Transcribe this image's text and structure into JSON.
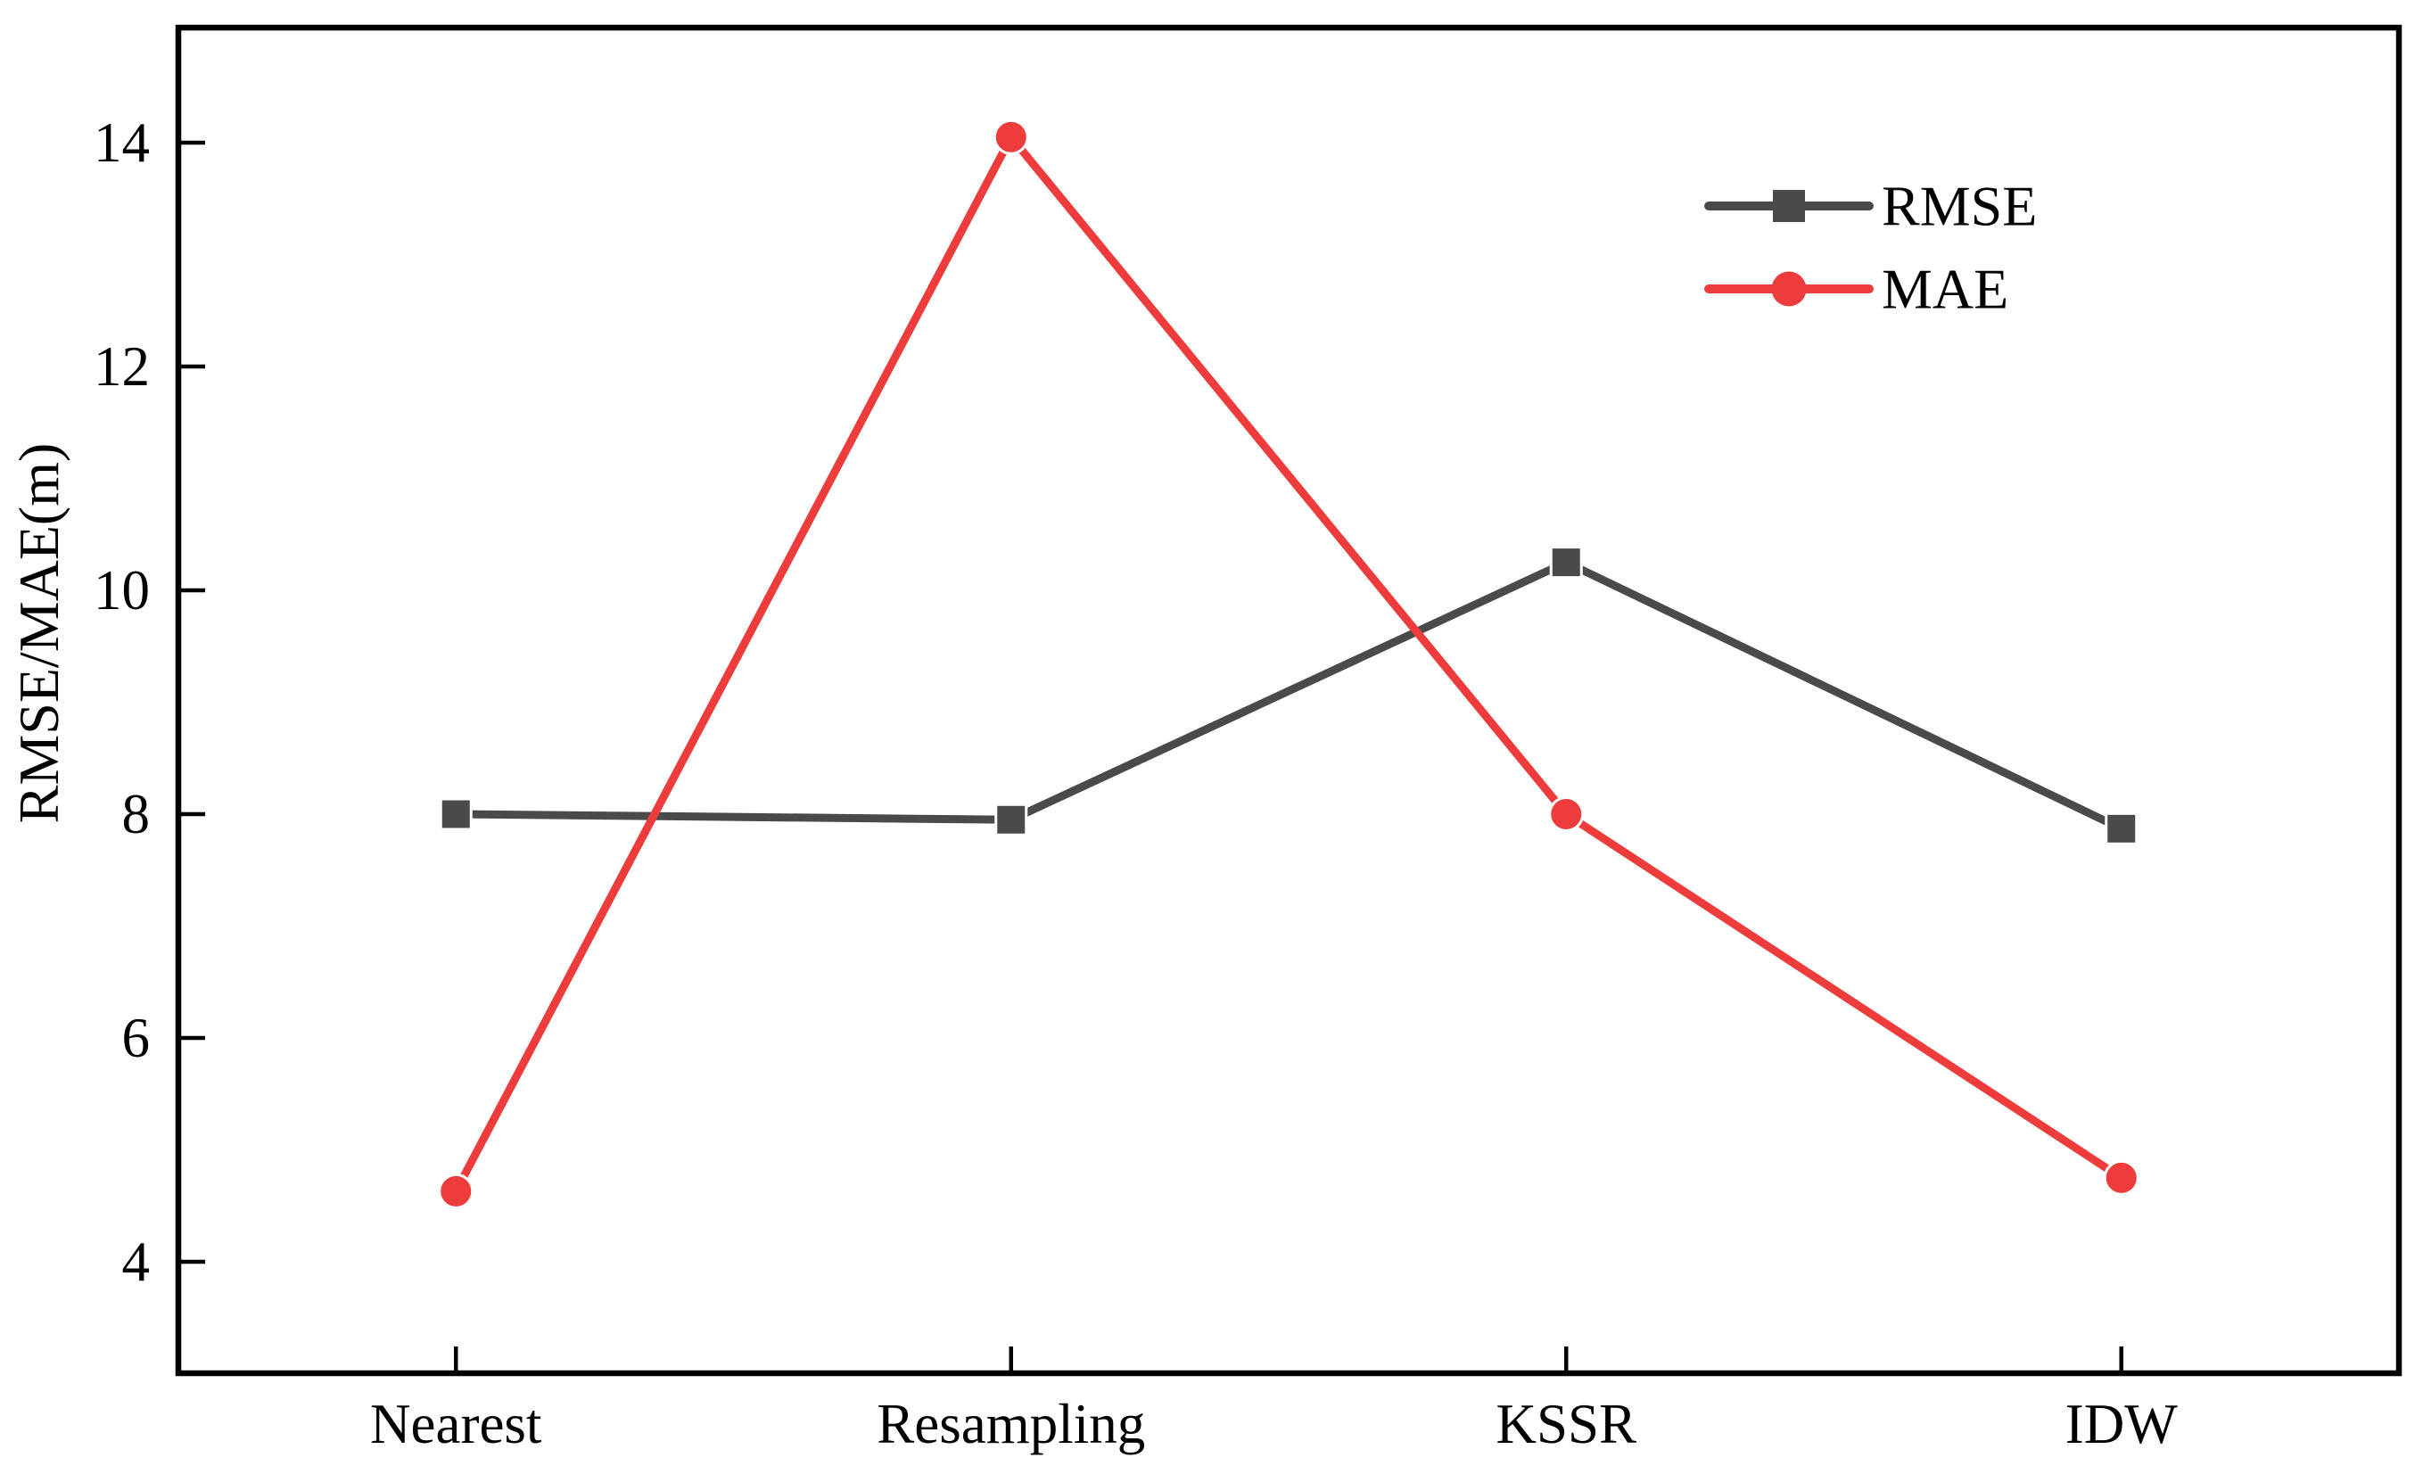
{
  "figure": {
    "background": "#ffffff"
  },
  "colors": {
    "rmse_series": "#4a4a4a",
    "mae_series": "#ee3b3b",
    "axis": "#000000",
    "text": "#000000"
  },
  "legend": {
    "position": "top-right",
    "items": [
      {
        "label": "RMSE",
        "marker": "square-marker-icon",
        "color": "#4a4a4a"
      },
      {
        "label": "MAE",
        "marker": "circle-marker-icon",
        "color": "#ee3b3b"
      }
    ]
  },
  "chart_data": {
    "type": "line",
    "title": "",
    "xlabel": "",
    "ylabel": "RMSE/MAE(m)",
    "categories": [
      "Nearest",
      "Resampling",
      "KSSR",
      "IDW"
    ],
    "series": [
      {
        "name": "RMSE",
        "color": "#4a4a4a",
        "marker": "square",
        "values": [
          8.0,
          7.95,
          10.25,
          7.87
        ]
      },
      {
        "name": "MAE",
        "color": "#ee3b3b",
        "marker": "circle",
        "values": [
          4.63,
          14.05,
          8.0,
          4.75
        ]
      }
    ],
    "ylim": [
      3,
      15
    ],
    "yticks": [
      4,
      6,
      8,
      10,
      12,
      14
    ],
    "grid": false,
    "frame": "full-box",
    "tick_direction": "in",
    "legend_position": "top-right"
  }
}
